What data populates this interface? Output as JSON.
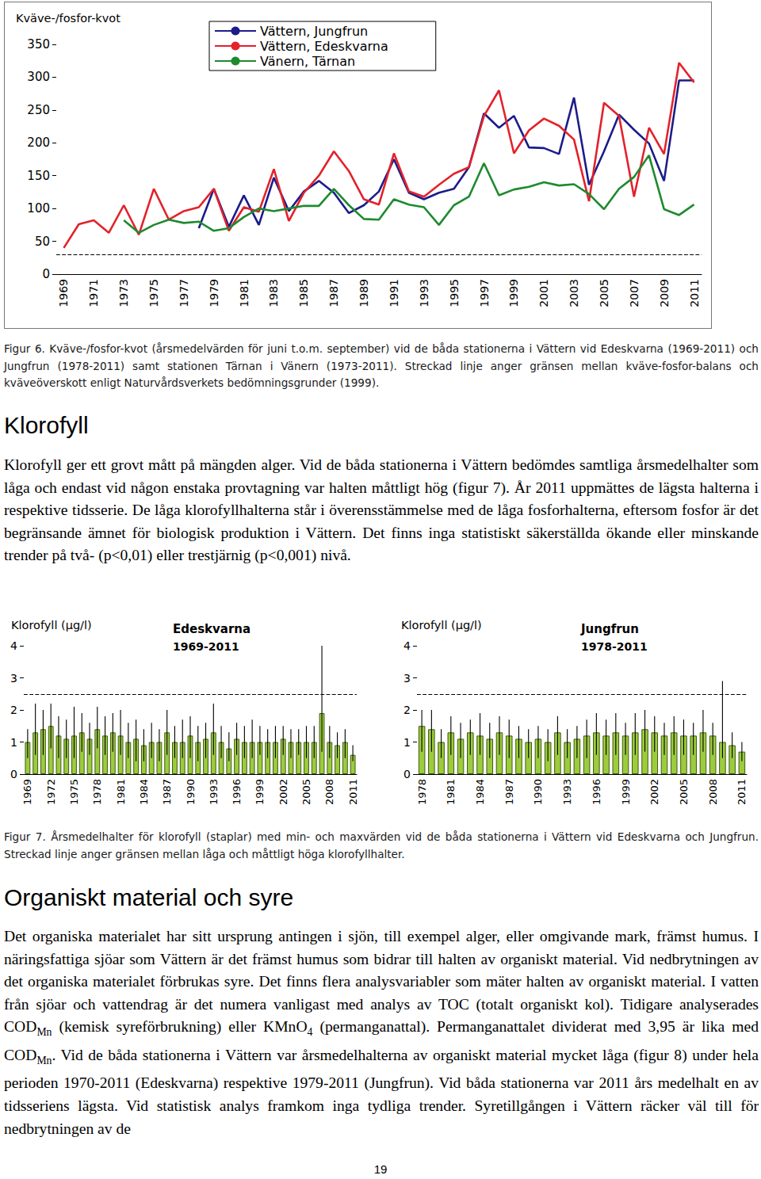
{
  "chart_data": [
    {
      "type": "line",
      "y_label": "Kväve-/fosfor-kvot",
      "categories": [
        "1969",
        null,
        "1971",
        null,
        "1973",
        null,
        "1975",
        null,
        "1977",
        null,
        "1979",
        null,
        "1981",
        null,
        "1983",
        null,
        "1985",
        null,
        "1987",
        null,
        "1989",
        null,
        "1991",
        null,
        "1993",
        null,
        "1995",
        null,
        "1997",
        null,
        "1999",
        null,
        "2001",
        null,
        "2003",
        null,
        "2005",
        null,
        "2007",
        null,
        "2009",
        null,
        "2011"
      ],
      "series": [
        {
          "name": "Vättern, Jungfrun",
          "color": "#1c1c8a",
          "values": [
            null,
            null,
            null,
            null,
            null,
            null,
            null,
            null,
            null,
            70,
            130,
            72,
            120,
            75,
            147,
            96,
            126,
            142,
            124,
            93,
            105,
            126,
            175,
            124,
            114,
            124,
            130,
            163,
            245,
            223,
            241,
            193,
            192,
            183,
            269,
            136,
            187,
            243,
            220,
            199,
            142,
            295,
            295
          ]
        },
        {
          "name": "Vättern, Edeskvarna",
          "color": "#e3222b",
          "values": [
            40,
            76,
            82,
            63,
            105,
            60,
            130,
            83,
            96,
            102,
            130,
            66,
            102,
            95,
            160,
            81,
            124,
            150,
            187,
            157,
            114,
            106,
            184,
            126,
            118,
            136,
            153,
            163,
            241,
            280,
            184,
            219,
            237,
            226,
            205,
            111,
            261,
            241,
            118,
            223,
            183,
            322,
            292
          ]
        },
        {
          "name": "Vänern, Tärnan",
          "color": "#1e8a2e",
          "values": [
            null,
            null,
            null,
            null,
            82,
            63,
            75,
            83,
            78,
            80,
            66,
            70,
            87,
            100,
            96,
            100,
            104,
            104,
            130,
            105,
            84,
            83,
            114,
            106,
            102,
            75,
            105,
            118,
            169,
            120,
            129,
            133,
            140,
            135,
            137,
            122,
            99,
            130,
            148,
            181,
            99,
            90,
            106
          ]
        }
      ],
      "threshold": 30,
      "ylim": [
        0,
        350
      ],
      "yticks": [
        0,
        50,
        100,
        150,
        200,
        250,
        300,
        350
      ],
      "grid": false,
      "legend": "top-left"
    },
    {
      "type": "bar",
      "y_label": "Klorofyll (µg/l)",
      "title": "Edeskvarna",
      "subtitle": "1969-2011",
      "categories": [
        "1969",
        null,
        null,
        "1972",
        null,
        null,
        "1975",
        null,
        null,
        "1978",
        null,
        null,
        "1981",
        null,
        null,
        "1984",
        null,
        null,
        "1987",
        null,
        null,
        "1990",
        null,
        null,
        "1993",
        null,
        null,
        "1996",
        null,
        null,
        "1999",
        null,
        null,
        "2002",
        null,
        null,
        "2005",
        null,
        null,
        "2008",
        null,
        null,
        "2011"
      ],
      "values": [
        1.0,
        1.3,
        1.4,
        1.5,
        1.2,
        1.1,
        1.2,
        1.3,
        1.1,
        1.4,
        1.2,
        1.3,
        1.2,
        1.0,
        1.1,
        0.9,
        1.0,
        1.0,
        1.3,
        1.0,
        1.0,
        1.2,
        1.0,
        1.1,
        1.3,
        1.0,
        0.8,
        1.1,
        1.0,
        1.0,
        1.0,
        1.0,
        1.0,
        1.1,
        1.0,
        1.0,
        1.0,
        1.0,
        1.9,
        1.0,
        0.9,
        1.0,
        0.6
      ],
      "min": [
        0.5,
        0.6,
        0.6,
        0.8,
        0.5,
        0.5,
        0.5,
        0.7,
        0.6,
        0.8,
        0.6,
        0.7,
        0.6,
        0.5,
        0.4,
        0.4,
        0.5,
        0.4,
        0.6,
        0.5,
        0.5,
        0.5,
        0.4,
        0.5,
        0.6,
        0.5,
        0.4,
        0.6,
        0.5,
        0.5,
        0.6,
        0.5,
        0.5,
        0.6,
        0.5,
        0.6,
        0.5,
        0.5,
        0.7,
        0.5,
        0.5,
        0.5,
        0.4
      ],
      "max": [
        1.4,
        2.2,
        2.0,
        2.2,
        1.8,
        1.7,
        2.1,
        1.9,
        1.6,
        2.1,
        1.8,
        1.9,
        2.0,
        1.6,
        1.7,
        1.4,
        1.6,
        1.4,
        2.0,
        1.5,
        1.7,
        1.8,
        1.5,
        1.6,
        2.2,
        1.5,
        1.3,
        1.6,
        1.5,
        1.7,
        1.5,
        1.4,
        1.5,
        1.5,
        1.4,
        1.4,
        1.5,
        1.5,
        4.0,
        1.5,
        1.3,
        1.4,
        0.9
      ],
      "threshold": 2.5,
      "color": "#9ccc3c",
      "ylim": [
        0,
        4
      ],
      "yticks": [
        0,
        1,
        2,
        3,
        4
      ],
      "grid": false
    },
    {
      "type": "bar",
      "y_label": "Klorofyll (µg/l)",
      "title": "Jungfrun",
      "subtitle": "1978-2011",
      "categories": [
        "1978",
        null,
        null,
        "1981",
        null,
        null,
        "1984",
        null,
        null,
        "1987",
        null,
        null,
        "1990",
        null,
        null,
        "1993",
        null,
        null,
        "1996",
        null,
        null,
        "1999",
        null,
        null,
        "2002",
        null,
        null,
        "2005",
        null,
        null,
        "2008",
        null,
        null,
        "2011"
      ],
      "values": [
        1.5,
        1.4,
        1.0,
        1.3,
        1.1,
        1.3,
        1.2,
        1.1,
        1.3,
        1.2,
        1.1,
        1.0,
        1.1,
        1.0,
        1.3,
        1.0,
        1.1,
        1.2,
        1.3,
        1.2,
        1.3,
        1.2,
        1.3,
        1.4,
        1.3,
        1.2,
        1.3,
        1.2,
        1.2,
        1.3,
        1.2,
        1.0,
        0.9,
        0.7
      ],
      "min": [
        0.7,
        0.7,
        0.5,
        0.6,
        0.5,
        0.6,
        0.6,
        0.5,
        0.6,
        0.5,
        0.5,
        0.5,
        0.5,
        0.4,
        0.6,
        0.5,
        0.5,
        0.5,
        0.6,
        0.6,
        0.6,
        0.6,
        0.6,
        0.7,
        0.7,
        0.6,
        0.6,
        0.6,
        0.6,
        0.7,
        0.6,
        0.5,
        0.5,
        0.4
      ],
      "max": [
        2.0,
        2.0,
        1.4,
        1.8,
        1.6,
        1.7,
        1.9,
        1.6,
        1.8,
        1.7,
        1.5,
        1.4,
        1.5,
        1.4,
        1.8,
        1.4,
        1.5,
        1.7,
        1.9,
        1.7,
        1.9,
        1.6,
        1.9,
        2.0,
        1.8,
        1.6,
        1.8,
        1.7,
        1.6,
        2.0,
        1.6,
        2.9,
        1.3,
        1.0
      ],
      "threshold": 2.5,
      "color": "#9ccc3c",
      "ylim": [
        0,
        4
      ],
      "yticks": [
        0,
        1,
        2,
        3,
        4
      ],
      "grid": false
    }
  ],
  "document": {
    "figure6_caption": "Figur 6. Kväve-/fosfor-kvot (årsmedelvärden för juni t.o.m. september) vid de båda stationerna i Vättern vid Edeskvarna (1969-2011) och Jungfrun (1978-2011) samt stationen Tärnan i Vänern (1973-2011). Streckad linje anger gränsen mellan kväve-fosfor-balans och kväveöverskott enligt Naturvårdsverkets bedömningsgrunder (1999).",
    "section1": {
      "heading": "Klorofyll",
      "paragraph": [
        "Klorofyll ger ett grovt mått på mängden alger. Vid de båda stationerna i Vättern bedömdes samtliga årsmedelhalter som låga och endast vid någon enstaka provtagning var halten måttligt hög (figur 7). År 2011 uppmättes de lägsta halterna i respektive tidsserie. De låga klorofyllhalterna står i överensstämmelse med de låga fosforhalterna, eftersom fosfor är det begränsande ämnet för biologisk produktion i Vättern. Det finns inga statistiskt säkerställda ökande eller minskande trender på två- (p<0,01) eller trestjärnig (p<0,001) nivå."
      ]
    },
    "figure7_caption": "Figur 7. Årsmedelhalter för klorofyll (staplar) med min- och maxvärden vid de båda stationerna i Vättern vid Edeskvarna och Jungfrun. Streckad linje anger gränsen mellan låga och måttligt höga klorofyllhalter.",
    "section2": {
      "heading": "Organiskt material och syre",
      "paragraph": [
        "Det organiska materialet har sitt ursprung antingen i sjön, till exempel alger, eller omgivande mark, främst humus. I näringsfattiga sjöar som Vättern är det främst humus som bidrar till halten av organiskt material. Vid nedbrytningen av det organiska materialet förbrukas syre. Det finns flera analysvariabler som mäter halten av organiskt material. I vatten från sjöar och vattendrag är det numera vanligast med analys av TOC (totalt organiskt kol). Tidigare analyserades COD",
        {
          "sub": "Mn"
        },
        " (kemisk syreförbrukning) eller KMnO",
        {
          "sub": "4"
        },
        " (permanganattal). Permanganattalet dividerat med 3,95 är lika med COD",
        {
          "sub": "Mn"
        },
        ". Vid de båda stationerna i Vättern var årsmedelhalterna av organiskt material mycket låga (figur 8) under hela perioden 1970-2011 (Edeskvarna) respektive 1979-2011 (Jungfrun). Vid båda stationerna var 2011 års medelhalt en av tidsseriens lägsta. Vid statistisk analys framkom inga tydliga trender. Syretillgången i Vättern räcker väl till för nedbrytningen av de"
      ]
    },
    "page_number": "19"
  }
}
